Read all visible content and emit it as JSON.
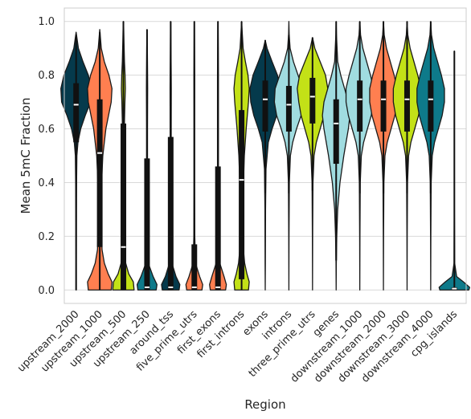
{
  "chart_data": {
    "type": "violin",
    "xlabel": "Region",
    "ylabel": "Mean 5mC Fraction",
    "ylim": [
      -0.05,
      1.05
    ],
    "yticks": [
      0.0,
      0.2,
      0.4,
      0.6,
      0.8,
      1.0
    ],
    "ytick_labels": [
      "0.0",
      "0.2",
      "0.4",
      "0.6",
      "0.8",
      "1.0"
    ],
    "grid": "horizontal",
    "categories": [
      "upstream_2000",
      "upstream_1000",
      "upstream_500",
      "upstream_250",
      "around_tss",
      "five_prime_utrs",
      "first_exons",
      "first_introns",
      "exons",
      "introns",
      "three_prime_utrs",
      "genes",
      "downstream_1000",
      "downstream_2000",
      "downstream_3000",
      "downstream_4000",
      "cpg_islands"
    ],
    "colors": [
      "#053a4c",
      "#ff7f50",
      "#c3e117",
      "#0e7a8a",
      "#053a4c",
      "#ff7f50",
      "#ff7f50",
      "#c3e117",
      "#053a4c",
      "#a0dce0",
      "#c3e117",
      "#a0dce0",
      "#a0dce0",
      "#ff7f50",
      "#c3e117",
      "#0e7a8a",
      "#0e7a8a"
    ],
    "series": [
      {
        "category": "upstream_2000",
        "min": 0.0,
        "max": 0.96,
        "q1": 0.55,
        "median": 0.69,
        "q3": 0.77,
        "whisker_low": 0.0,
        "whisker_high": 0.95,
        "density": [
          [
            0.0,
            0.01
          ],
          [
            0.1,
            0.01
          ],
          [
            0.2,
            0.015
          ],
          [
            0.3,
            0.02
          ],
          [
            0.4,
            0.03
          ],
          [
            0.5,
            0.05
          ],
          [
            0.55,
            0.12
          ],
          [
            0.6,
            0.3
          ],
          [
            0.65,
            0.6
          ],
          [
            0.7,
            0.95
          ],
          [
            0.75,
            1.0
          ],
          [
            0.8,
            0.8
          ],
          [
            0.85,
            0.45
          ],
          [
            0.9,
            0.15
          ],
          [
            0.96,
            0.0
          ]
        ]
      },
      {
        "category": "upstream_1000",
        "min": 0.0,
        "max": 0.97,
        "q1": 0.16,
        "median": 0.51,
        "q3": 0.71,
        "whisker_low": 0.0,
        "whisker_high": 0.96,
        "density": [
          [
            0.0,
            0.75
          ],
          [
            0.03,
            0.8
          ],
          [
            0.06,
            0.55
          ],
          [
            0.1,
            0.3
          ],
          [
            0.15,
            0.15
          ],
          [
            0.2,
            0.12
          ],
          [
            0.3,
            0.1
          ],
          [
            0.4,
            0.12
          ],
          [
            0.5,
            0.2
          ],
          [
            0.6,
            0.4
          ],
          [
            0.7,
            0.75
          ],
          [
            0.75,
            0.8
          ],
          [
            0.8,
            0.6
          ],
          [
            0.85,
            0.3
          ],
          [
            0.9,
            0.1
          ],
          [
            0.97,
            0.0
          ]
        ]
      },
      {
        "category": "upstream_500",
        "min": 0.0,
        "max": 1.0,
        "q1": 0.0,
        "median": 0.16,
        "q3": 0.62,
        "whisker_low": 0.0,
        "whisker_high": 1.0,
        "density": [
          [
            0.0,
            0.7
          ],
          [
            0.03,
            0.65
          ],
          [
            0.06,
            0.35
          ],
          [
            0.1,
            0.15
          ],
          [
            0.15,
            0.08
          ],
          [
            0.25,
            0.06
          ],
          [
            0.4,
            0.05
          ],
          [
            0.6,
            0.06
          ],
          [
            0.7,
            0.1
          ],
          [
            0.75,
            0.13
          ],
          [
            0.8,
            0.11
          ],
          [
            0.85,
            0.07
          ],
          [
            0.92,
            0.04
          ],
          [
            1.0,
            0.01
          ]
        ]
      },
      {
        "category": "upstream_250",
        "min": 0.0,
        "max": 0.97,
        "q1": 0.0,
        "median": 0.01,
        "q3": 0.49,
        "whisker_low": 0.0,
        "whisker_high": 0.97,
        "density": [
          [
            0.0,
            0.6
          ],
          [
            0.02,
            0.65
          ],
          [
            0.05,
            0.4
          ],
          [
            0.1,
            0.08
          ],
          [
            0.2,
            0.04
          ],
          [
            0.4,
            0.03
          ],
          [
            0.6,
            0.03
          ],
          [
            0.75,
            0.04
          ],
          [
            0.8,
            0.035
          ],
          [
            0.9,
            0.02
          ],
          [
            0.97,
            0.0
          ]
        ]
      },
      {
        "category": "around_tss",
        "min": 0.0,
        "max": 1.0,
        "q1": 0.0,
        "median": 0.01,
        "q3": 0.57,
        "whisker_low": 0.0,
        "whisker_high": 1.0,
        "density": [
          [
            0.0,
            0.55
          ],
          [
            0.02,
            0.6
          ],
          [
            0.05,
            0.35
          ],
          [
            0.1,
            0.08
          ],
          [
            0.2,
            0.04
          ],
          [
            0.4,
            0.03
          ],
          [
            0.6,
            0.035
          ],
          [
            0.75,
            0.04
          ],
          [
            0.8,
            0.035
          ],
          [
            0.9,
            0.02
          ],
          [
            1.0,
            0.005
          ]
        ]
      },
      {
        "category": "five_prime_utrs",
        "min": 0.0,
        "max": 1.0,
        "q1": 0.0,
        "median": 0.01,
        "q3": 0.17,
        "whisker_low": 0.0,
        "whisker_high": 1.0,
        "density": [
          [
            0.0,
            0.5
          ],
          [
            0.02,
            0.55
          ],
          [
            0.05,
            0.35
          ],
          [
            0.1,
            0.08
          ],
          [
            0.2,
            0.03
          ],
          [
            0.4,
            0.02
          ],
          [
            0.6,
            0.02
          ],
          [
            0.8,
            0.025
          ],
          [
            0.9,
            0.015
          ],
          [
            1.0,
            0.005
          ]
        ]
      },
      {
        "category": "first_exons",
        "min": 0.0,
        "max": 1.0,
        "q1": 0.0,
        "median": 0.01,
        "q3": 0.46,
        "whisker_low": 0.0,
        "whisker_high": 1.0,
        "density": [
          [
            0.0,
            0.5
          ],
          [
            0.02,
            0.55
          ],
          [
            0.05,
            0.4
          ],
          [
            0.1,
            0.12
          ],
          [
            0.2,
            0.04
          ],
          [
            0.4,
            0.03
          ],
          [
            0.6,
            0.03
          ],
          [
            0.8,
            0.03
          ],
          [
            0.9,
            0.02
          ],
          [
            1.0,
            0.005
          ]
        ]
      },
      {
        "category": "first_introns",
        "min": 0.0,
        "max": 1.0,
        "q1": 0.04,
        "median": 0.41,
        "q3": 0.67,
        "whisker_low": 0.0,
        "whisker_high": 1.0,
        "density": [
          [
            0.0,
            0.45
          ],
          [
            0.03,
            0.5
          ],
          [
            0.06,
            0.35
          ],
          [
            0.1,
            0.2
          ],
          [
            0.15,
            0.12
          ],
          [
            0.25,
            0.1
          ],
          [
            0.4,
            0.12
          ],
          [
            0.5,
            0.18
          ],
          [
            0.6,
            0.3
          ],
          [
            0.7,
            0.45
          ],
          [
            0.75,
            0.5
          ],
          [
            0.8,
            0.42
          ],
          [
            0.85,
            0.25
          ],
          [
            0.9,
            0.1
          ],
          [
            1.0,
            0.0
          ]
        ]
      },
      {
        "category": "exons",
        "min": 0.0,
        "max": 0.93,
        "q1": 0.59,
        "median": 0.71,
        "q3": 0.78,
        "whisker_low": 0.36,
        "whisker_high": 0.93,
        "density": [
          [
            0.0,
            0.0
          ],
          [
            0.1,
            0.01
          ],
          [
            0.3,
            0.02
          ],
          [
            0.45,
            0.05
          ],
          [
            0.55,
            0.2
          ],
          [
            0.6,
            0.45
          ],
          [
            0.65,
            0.75
          ],
          [
            0.7,
            0.95
          ],
          [
            0.75,
            1.0
          ],
          [
            0.8,
            0.8
          ],
          [
            0.85,
            0.45
          ],
          [
            0.9,
            0.12
          ],
          [
            0.93,
            0.0
          ]
        ]
      },
      {
        "category": "introns",
        "min": 0.0,
        "max": 1.0,
        "q1": 0.59,
        "median": 0.69,
        "q3": 0.76,
        "whisker_low": 0.36,
        "whisker_high": 0.95,
        "density": [
          [
            0.0,
            0.0
          ],
          [
            0.2,
            0.01
          ],
          [
            0.4,
            0.03
          ],
          [
            0.5,
            0.1
          ],
          [
            0.55,
            0.25
          ],
          [
            0.6,
            0.5
          ],
          [
            0.65,
            0.8
          ],
          [
            0.7,
            0.95
          ],
          [
            0.75,
            0.9
          ],
          [
            0.8,
            0.6
          ],
          [
            0.85,
            0.3
          ],
          [
            0.9,
            0.08
          ],
          [
            0.95,
            0.02
          ],
          [
            1.0,
            0.0
          ]
        ]
      },
      {
        "category": "three_prime_utrs",
        "min": 0.0,
        "max": 0.94,
        "q1": 0.62,
        "median": 0.72,
        "q3": 0.79,
        "whisker_low": 0.37,
        "whisker_high": 0.94,
        "density": [
          [
            0.0,
            0.0
          ],
          [
            0.2,
            0.01
          ],
          [
            0.4,
            0.03
          ],
          [
            0.5,
            0.1
          ],
          [
            0.55,
            0.25
          ],
          [
            0.6,
            0.5
          ],
          [
            0.65,
            0.75
          ],
          [
            0.7,
            0.9
          ],
          [
            0.75,
            1.0
          ],
          [
            0.8,
            0.85
          ],
          [
            0.85,
            0.5
          ],
          [
            0.9,
            0.15
          ],
          [
            0.94,
            0.0
          ]
        ]
      },
      {
        "category": "genes",
        "min": 0.0,
        "max": 1.0,
        "q1": 0.47,
        "median": 0.62,
        "q3": 0.71,
        "whisker_low": 0.11,
        "whisker_high": 1.0,
        "density": [
          [
            0.0,
            0.0
          ],
          [
            0.1,
            0.01
          ],
          [
            0.2,
            0.04
          ],
          [
            0.3,
            0.1
          ],
          [
            0.4,
            0.25
          ],
          [
            0.5,
            0.5
          ],
          [
            0.6,
            0.8
          ],
          [
            0.65,
            0.9
          ],
          [
            0.7,
            0.8
          ],
          [
            0.75,
            0.55
          ],
          [
            0.8,
            0.3
          ],
          [
            0.85,
            0.1
          ],
          [
            0.95,
            0.02
          ],
          [
            1.0,
            0.0
          ]
        ]
      },
      {
        "category": "downstream_1000",
        "min": 0.0,
        "max": 1.0,
        "q1": 0.59,
        "median": 0.71,
        "q3": 0.78,
        "whisker_low": 0.36,
        "whisker_high": 1.0,
        "density": [
          [
            0.0,
            0.0
          ],
          [
            0.2,
            0.01
          ],
          [
            0.4,
            0.03
          ],
          [
            0.5,
            0.1
          ],
          [
            0.55,
            0.25
          ],
          [
            0.6,
            0.5
          ],
          [
            0.65,
            0.75
          ],
          [
            0.7,
            0.9
          ],
          [
            0.75,
            0.9
          ],
          [
            0.8,
            0.7
          ],
          [
            0.85,
            0.45
          ],
          [
            0.9,
            0.2
          ],
          [
            0.95,
            0.05
          ],
          [
            1.0,
            0.0
          ]
        ]
      },
      {
        "category": "downstream_2000",
        "min": 0.0,
        "max": 1.0,
        "q1": 0.59,
        "median": 0.71,
        "q3": 0.78,
        "whisker_low": 0.36,
        "whisker_high": 1.0,
        "density": [
          [
            0.0,
            0.0
          ],
          [
            0.2,
            0.01
          ],
          [
            0.4,
            0.03
          ],
          [
            0.5,
            0.1
          ],
          [
            0.55,
            0.25
          ],
          [
            0.6,
            0.5
          ],
          [
            0.65,
            0.75
          ],
          [
            0.7,
            0.9
          ],
          [
            0.75,
            0.9
          ],
          [
            0.8,
            0.7
          ],
          [
            0.85,
            0.45
          ],
          [
            0.9,
            0.2
          ],
          [
            0.95,
            0.05
          ],
          [
            1.0,
            0.0
          ]
        ]
      },
      {
        "category": "downstream_3000",
        "min": 0.0,
        "max": 1.0,
        "q1": 0.59,
        "median": 0.71,
        "q3": 0.78,
        "whisker_low": 0.36,
        "whisker_high": 1.0,
        "density": [
          [
            0.0,
            0.0
          ],
          [
            0.2,
            0.01
          ],
          [
            0.4,
            0.03
          ],
          [
            0.5,
            0.1
          ],
          [
            0.55,
            0.25
          ],
          [
            0.6,
            0.5
          ],
          [
            0.65,
            0.75
          ],
          [
            0.7,
            0.9
          ],
          [
            0.75,
            0.9
          ],
          [
            0.8,
            0.7
          ],
          [
            0.85,
            0.45
          ],
          [
            0.9,
            0.2
          ],
          [
            0.95,
            0.05
          ],
          [
            1.0,
            0.0
          ]
        ]
      },
      {
        "category": "downstream_4000",
        "min": 0.0,
        "max": 1.0,
        "q1": 0.59,
        "median": 0.71,
        "q3": 0.78,
        "whisker_low": 0.36,
        "whisker_high": 1.0,
        "density": [
          [
            0.0,
            0.0
          ],
          [
            0.2,
            0.01
          ],
          [
            0.4,
            0.03
          ],
          [
            0.5,
            0.1
          ],
          [
            0.55,
            0.25
          ],
          [
            0.6,
            0.5
          ],
          [
            0.65,
            0.75
          ],
          [
            0.7,
            0.9
          ],
          [
            0.75,
            0.9
          ],
          [
            0.8,
            0.7
          ],
          [
            0.85,
            0.45
          ],
          [
            0.9,
            0.2
          ],
          [
            0.95,
            0.05
          ],
          [
            1.0,
            0.0
          ]
        ]
      },
      {
        "category": "cpg_islands",
        "min": 0.0,
        "max": 0.89,
        "q1": 0.0,
        "median": 0.005,
        "q3": 0.01,
        "whisker_low": 0.0,
        "whisker_high": 0.89,
        "density": [
          [
            0.0,
            0.95
          ],
          [
            0.01,
            1.0
          ],
          [
            0.03,
            0.6
          ],
          [
            0.05,
            0.15
          ],
          [
            0.1,
            0.02
          ],
          [
            0.3,
            0.005
          ],
          [
            0.6,
            0.003
          ],
          [
            0.89,
            0.0
          ]
        ]
      }
    ]
  }
}
